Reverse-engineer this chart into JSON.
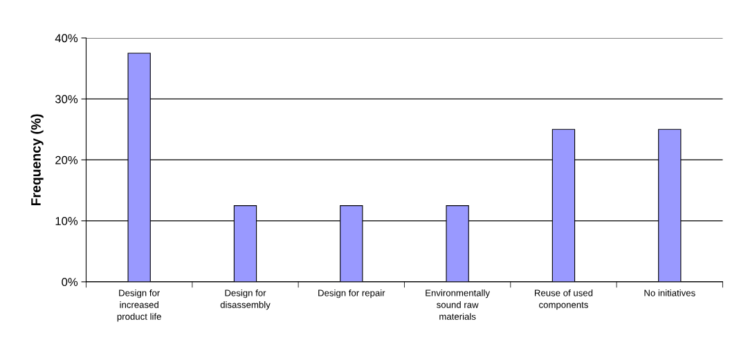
{
  "chart_data": {
    "type": "bar",
    "ylabel": "Frequency (%)",
    "categories": [
      "Design for\nincreased\nproduct life",
      "Design for\ndisassembly",
      "Design for repair",
      "Environmentally\nsound raw\nmaterials",
      "Reuse of used\ncomponents",
      "No initiatives"
    ],
    "values": [
      37.5,
      12.5,
      12.5,
      12.5,
      25,
      25
    ],
    "color": "#9999ff",
    "ylim": [
      0,
      40
    ],
    "yticks": [
      {
        "value": 0,
        "label": "0%"
      },
      {
        "value": 10,
        "label": "10%"
      },
      {
        "value": 20,
        "label": "20%"
      },
      {
        "value": 30,
        "label": "30%"
      },
      {
        "value": 40,
        "label": "40%"
      }
    ],
    "grid": "y",
    "legend": false
  }
}
